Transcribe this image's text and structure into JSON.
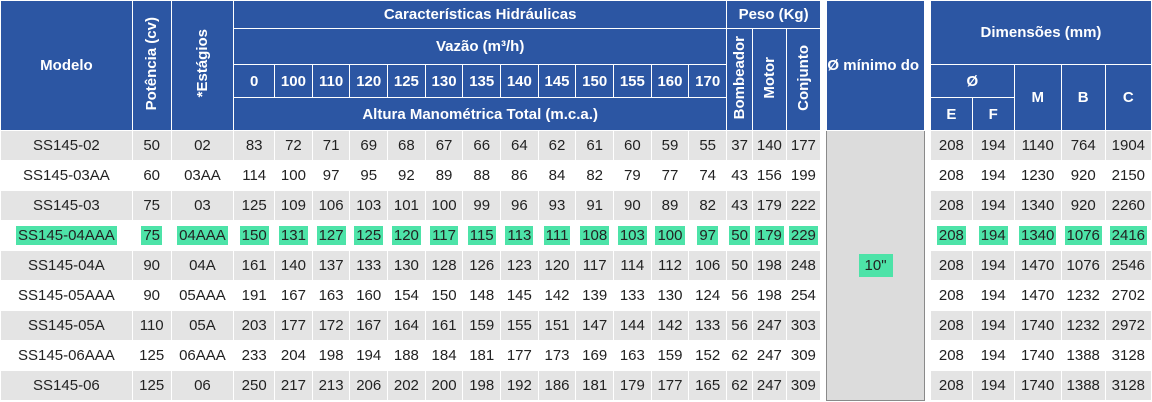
{
  "header": {
    "modelo": "Modelo",
    "potencia": "Potência (cv)",
    "estagios": "*Estágios",
    "caracteristicas": "Características Hidráulicas",
    "vazao": "Vazão (m³/h)",
    "altura": "Altura Manométrica Total (m.c.a.)",
    "peso": "Peso (Kg)",
    "bombeador": "Bombeador",
    "motor": "Motor",
    "conjunto": "Conjunto",
    "poco": "Ø mínimo do Poço (pol.)",
    "dimensoes": "Dimensões (mm)",
    "diam": "Ø",
    "e": "E",
    "f": "F",
    "m": "M",
    "b": "B",
    "c": "C",
    "flows": [
      "0",
      "100",
      "110",
      "120",
      "125",
      "130",
      "135",
      "140",
      "145",
      "150",
      "155",
      "160",
      "170"
    ]
  },
  "poco_value": "10\"",
  "highlight_color": "#4de3a8",
  "header_color": "#2c56a3",
  "rows": [
    {
      "modelo": "SS145-02",
      "pot": "50",
      "est": "02",
      "h": [
        "83",
        "72",
        "71",
        "69",
        "68",
        "67",
        "66",
        "64",
        "62",
        "61",
        "60",
        "59",
        "55"
      ],
      "bomb": "37",
      "motor": "140",
      "conj": "177",
      "e": "208",
      "f": "194",
      "m": "1140",
      "b": "764",
      "c": "1904"
    },
    {
      "modelo": "SS145-03AA",
      "pot": "60",
      "est": "03AA",
      "h": [
        "114",
        "100",
        "97",
        "95",
        "92",
        "89",
        "88",
        "86",
        "84",
        "82",
        "79",
        "77",
        "74"
      ],
      "bomb": "43",
      "motor": "156",
      "conj": "199",
      "e": "208",
      "f": "194",
      "m": "1230",
      "b": "920",
      "c": "2150"
    },
    {
      "modelo": "SS145-03",
      "pot": "75",
      "est": "03",
      "h": [
        "125",
        "109",
        "106",
        "103",
        "101",
        "100",
        "99",
        "96",
        "93",
        "91",
        "90",
        "89",
        "82"
      ],
      "bomb": "43",
      "motor": "179",
      "conj": "222",
      "e": "208",
      "f": "194",
      "m": "1340",
      "b": "920",
      "c": "2260"
    },
    {
      "modelo": "SS145-04AAA",
      "pot": "75",
      "est": "04AAA",
      "h": [
        "150",
        "131",
        "127",
        "125",
        "120",
        "117",
        "115",
        "113",
        "111",
        "108",
        "103",
        "100",
        "97"
      ],
      "bomb": "50",
      "motor": "179",
      "conj": "229",
      "e": "208",
      "f": "194",
      "m": "1340",
      "b": "1076",
      "c": "2416"
    },
    {
      "modelo": "SS145-04A",
      "pot": "90",
      "est": "04A",
      "h": [
        "161",
        "140",
        "137",
        "133",
        "130",
        "128",
        "126",
        "123",
        "120",
        "117",
        "114",
        "112",
        "106"
      ],
      "bomb": "50",
      "motor": "198",
      "conj": "248",
      "e": "208",
      "f": "194",
      "m": "1470",
      "b": "1076",
      "c": "2546"
    },
    {
      "modelo": "SS145-05AAA",
      "pot": "90",
      "est": "05AAA",
      "h": [
        "191",
        "167",
        "163",
        "160",
        "154",
        "150",
        "148",
        "145",
        "142",
        "139",
        "133",
        "130",
        "124"
      ],
      "bomb": "56",
      "motor": "198",
      "conj": "254",
      "e": "208",
      "f": "194",
      "m": "1470",
      "b": "1232",
      "c": "2702"
    },
    {
      "modelo": "SS145-05A",
      "pot": "110",
      "est": "05A",
      "h": [
        "203",
        "177",
        "172",
        "167",
        "164",
        "161",
        "159",
        "155",
        "151",
        "147",
        "144",
        "142",
        "133"
      ],
      "bomb": "56",
      "motor": "247",
      "conj": "303",
      "e": "208",
      "f": "194",
      "m": "1740",
      "b": "1232",
      "c": "2972"
    },
    {
      "modelo": "SS145-06AAA",
      "pot": "125",
      "est": "06AAA",
      "h": [
        "233",
        "204",
        "198",
        "194",
        "188",
        "184",
        "181",
        "177",
        "173",
        "169",
        "163",
        "159",
        "152"
      ],
      "bomb": "62",
      "motor": "247",
      "conj": "309",
      "e": "208",
      "f": "194",
      "m": "1740",
      "b": "1388",
      "c": "3128"
    },
    {
      "modelo": "SS145-06",
      "pot": "125",
      "est": "06",
      "h": [
        "250",
        "217",
        "213",
        "206",
        "202",
        "200",
        "198",
        "192",
        "186",
        "181",
        "179",
        "177",
        "165"
      ],
      "bomb": "62",
      "motor": "247",
      "conj": "309",
      "e": "208",
      "f": "194",
      "m": "1740",
      "b": "1388",
      "c": "3128"
    }
  ]
}
